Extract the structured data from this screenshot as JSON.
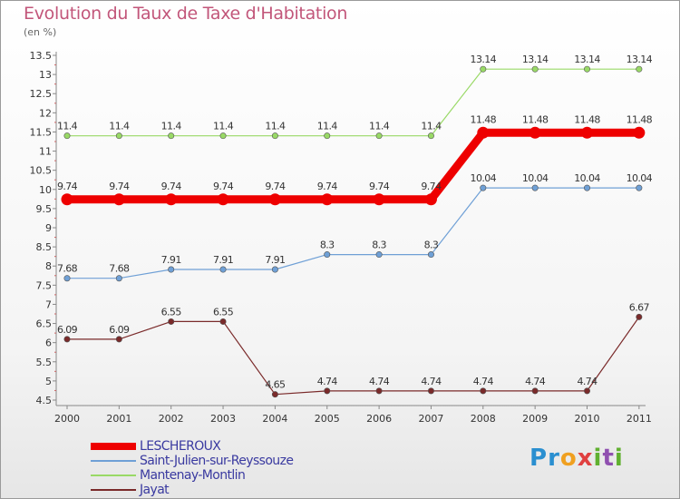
{
  "title": "Evolution du Taux de Taxe d'Habitation",
  "subtitle": "(en %)",
  "logo": {
    "letters": [
      "P",
      "r",
      "o",
      "x",
      "i",
      "t",
      "i"
    ],
    "colors": [
      "#2a8fd0",
      "#2a8fd0",
      "#f0a020",
      "#e04040",
      "#60b030",
      "#9050b0",
      "#60b030"
    ]
  },
  "chart_data": {
    "type": "line",
    "x": [
      "2000",
      "2001",
      "2002",
      "2003",
      "2004",
      "2005",
      "2006",
      "2007",
      "2008",
      "2009",
      "2010",
      "2011"
    ],
    "ylim": [
      4.5,
      13.5
    ],
    "yticks": [
      "4.5",
      "5",
      "5.5",
      "6",
      "6.5",
      "7",
      "7.5",
      "8",
      "8.5",
      "9",
      "9.5",
      "10",
      "10.5",
      "11",
      "11.5",
      "12",
      "12.5",
      "13",
      "13.5"
    ],
    "grid": false,
    "legend_position": "bottom-left",
    "series": [
      {
        "name": "LESCHEROUX",
        "color": "#ee0000",
        "values": [
          9.74,
          9.74,
          9.74,
          9.74,
          9.74,
          9.74,
          9.74,
          9.74,
          11.48,
          11.48,
          11.48,
          11.48
        ],
        "labels": [
          "9.74",
          "9.74",
          "9.74",
          "9.74",
          "9.74",
          "9.74",
          "9.74",
          "9.74",
          "11.48",
          "11.48",
          "11.48",
          "11.48"
        ]
      },
      {
        "name": "Saint-Julien-sur-Reyssouze",
        "color": "#6fa0d6",
        "values": [
          7.68,
          7.68,
          7.91,
          7.91,
          7.91,
          8.3,
          8.3,
          8.3,
          10.04,
          10.04,
          10.04,
          10.04
        ],
        "labels": [
          "7.68",
          "7.68",
          "7.91",
          "7.91",
          "7.91",
          "8.3",
          "8.3",
          "8.3",
          "10.04",
          "10.04",
          "10.04",
          "10.04"
        ]
      },
      {
        "name": "Mantenay-Montlin",
        "color": "#99d966",
        "values": [
          11.4,
          11.4,
          11.4,
          11.4,
          11.4,
          11.4,
          11.4,
          11.4,
          13.14,
          13.14,
          13.14,
          13.14
        ],
        "labels": [
          "11.4",
          "11.4",
          "11.4",
          "11.4",
          "11.4",
          "11.4",
          "11.4",
          "11.4",
          "13.14",
          "13.14",
          "13.14",
          "13.14"
        ]
      },
      {
        "name": "Jayat",
        "color": "#7a2a2a",
        "values": [
          6.09,
          6.09,
          6.55,
          6.55,
          4.65,
          4.74,
          4.74,
          4.74,
          4.74,
          4.74,
          4.74,
          6.67
        ],
        "labels": [
          "6.09",
          "6.09",
          "6.55",
          "6.55",
          "4.65",
          "4.74",
          "4.74",
          "4.74",
          "4.74",
          "4.74",
          "4.74",
          "6.67"
        ]
      }
    ]
  }
}
